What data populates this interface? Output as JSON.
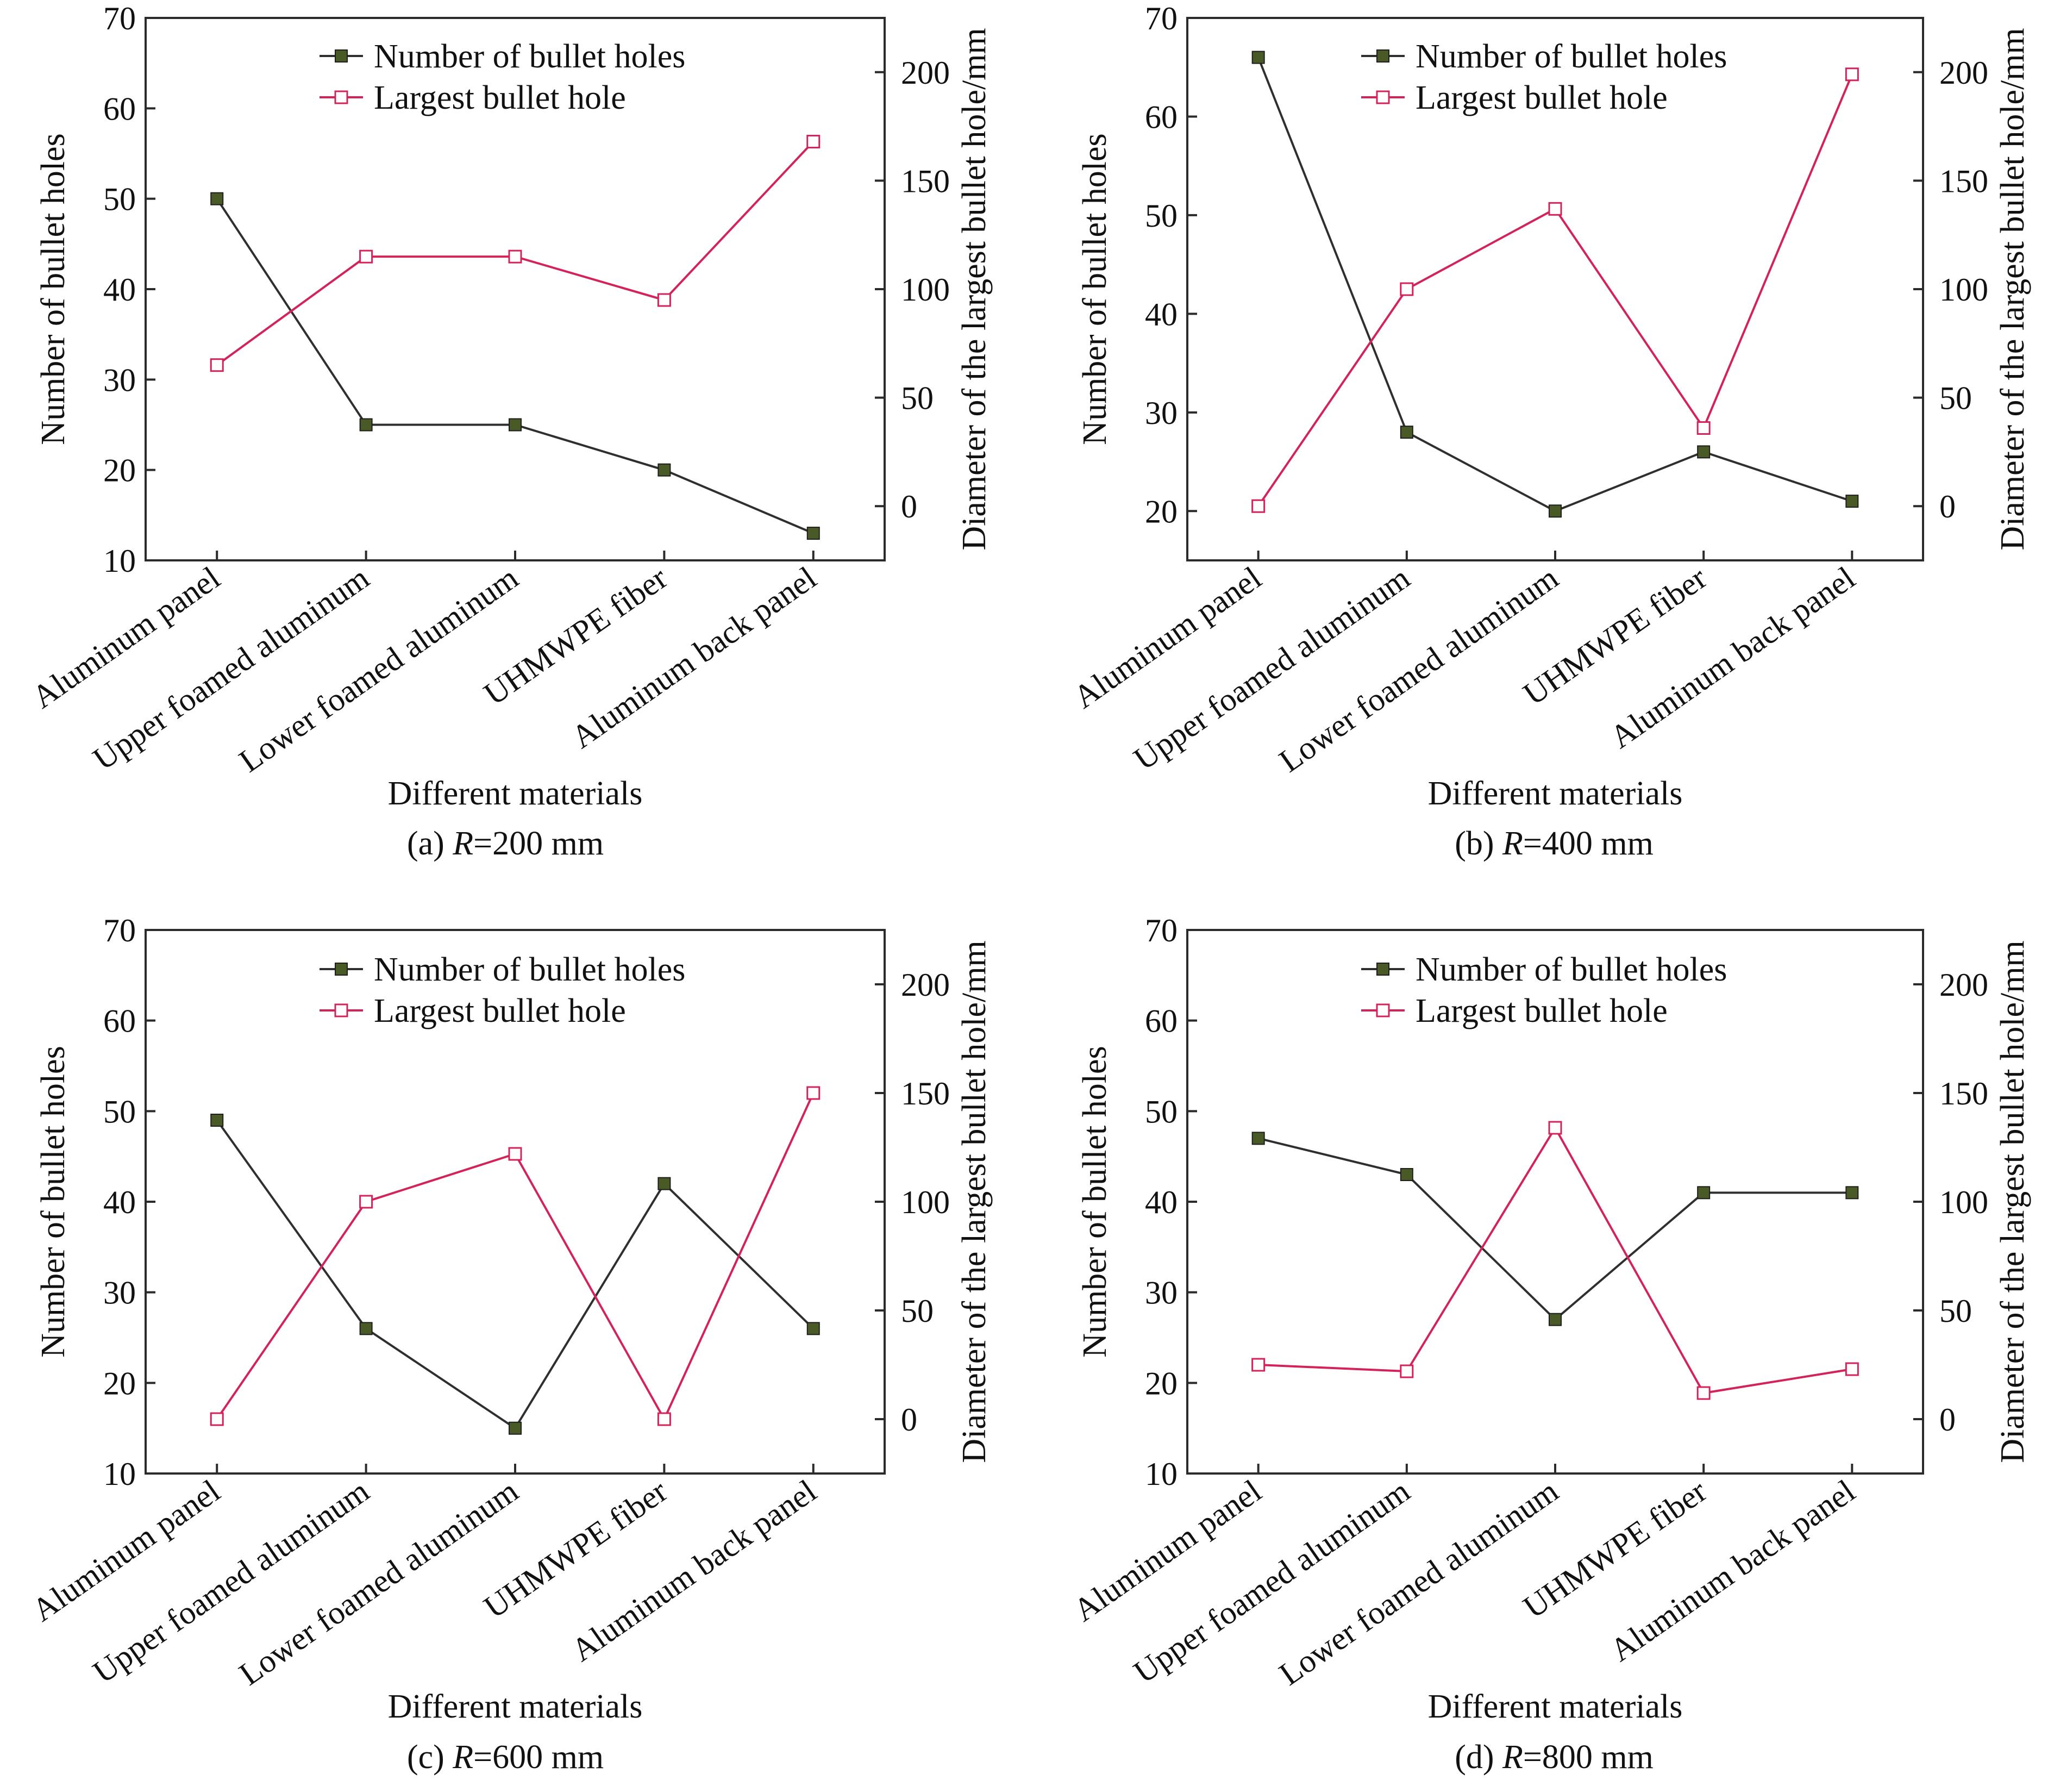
{
  "figure": {
    "panels": [
      {
        "caption_prefix": "(a) ",
        "caption_var": "R",
        "caption_suffix": "=200 mm",
        "xlabel": "Different materials",
        "ylabel_left": "Number of bullet holes",
        "ylabel_right": "Diameter of the largest bullet hole/mm"
      },
      {
        "caption_prefix": "(b) ",
        "caption_var": "R",
        "caption_suffix": "=400 mm",
        "xlabel": "Different materials",
        "ylabel_left": "Number of bullet holes",
        "ylabel_right": "Diameter of the largest bullet hole/mm"
      },
      {
        "caption_prefix": "(c) ",
        "caption_var": "R",
        "caption_suffix": "=600 mm",
        "xlabel": "Different materials",
        "ylabel_left": "Number of bullet holes",
        "ylabel_right": "Diameter of the largest bullet hole/mm"
      },
      {
        "caption_prefix": "(d) ",
        "caption_var": "R",
        "caption_suffix": "=800 mm",
        "xlabel": "Different materials",
        "ylabel_left": "Number of bullet holes",
        "ylabel_right": "Diameter of the largest bullet hole/mm"
      }
    ]
  },
  "colors": {
    "number_series": "#2f2f2f",
    "number_marker": "#4a5a26",
    "largest_series": "#d2245a",
    "largest_marker_fill": "#ffffff"
  },
  "chart_data": [
    {
      "type": "line",
      "categories": [
        "Aluminum panel",
        "Upper foamed aluminum",
        "Lower foamed aluminum",
        "UHMWPE fiber",
        "Aluminum back panel"
      ],
      "series": [
        {
          "name": "Number of bullet holes",
          "axis": "left",
          "values": [
            50,
            25,
            25,
            20,
            13
          ]
        },
        {
          "name": "Largest bullet hole",
          "axis": "right",
          "values": [
            65,
            115,
            115,
            95,
            168
          ]
        }
      ],
      "xlabel": "Different materials",
      "ylabel_left": "Number of bullet holes",
      "ylabel_right": "Diameter of the largest bullet hole/mm",
      "ylim_left": [
        10,
        70
      ],
      "yticks_left": [
        10,
        20,
        30,
        40,
        50,
        60,
        70
      ],
      "ylim_right": [
        -25,
        225
      ],
      "yticks_right": [
        0,
        50,
        100,
        150,
        200
      ],
      "legend_position": "top-center",
      "grid": false
    },
    {
      "type": "line",
      "categories": [
        "Aluminum panel",
        "Upper foamed aluminum",
        "Lower foamed aluminum",
        "UHMWPE fiber",
        "Aluminum back panel"
      ],
      "series": [
        {
          "name": "Number of bullet holes",
          "axis": "left",
          "values": [
            66,
            28,
            20,
            26,
            21
          ]
        },
        {
          "name": "Largest bullet hole",
          "axis": "right",
          "values": [
            0,
            100,
            137,
            36,
            199
          ]
        }
      ],
      "xlabel": "Different materials",
      "ylabel_left": "Number of bullet holes",
      "ylabel_right": "Diameter of the largest bullet hole/mm",
      "ylim_left": [
        15,
        70
      ],
      "yticks_left": [
        20,
        30,
        40,
        50,
        60,
        70
      ],
      "ylim_right": [
        -25,
        225
      ],
      "yticks_right": [
        0,
        50,
        100,
        150,
        200
      ],
      "legend_position": "top-center",
      "grid": false
    },
    {
      "type": "line",
      "categories": [
        "Aluminum panel",
        "Upper foamed aluminum",
        "Lower foamed aluminum",
        "UHMWPE fiber",
        "Aluminum back panel"
      ],
      "series": [
        {
          "name": "Number of bullet holes",
          "axis": "left",
          "values": [
            49,
            26,
            15,
            42,
            26
          ]
        },
        {
          "name": "Largest bullet hole",
          "axis": "right",
          "values": [
            0,
            100,
            122,
            0,
            150
          ]
        }
      ],
      "xlabel": "Different materials",
      "ylabel_left": "Number of bullet holes",
      "ylabel_right": "Diameter of the largest bullet hole/mm",
      "ylim_left": [
        10,
        70
      ],
      "yticks_left": [
        10,
        20,
        30,
        40,
        50,
        60,
        70
      ],
      "ylim_right": [
        -25,
        225
      ],
      "yticks_right": [
        0,
        50,
        100,
        150,
        200
      ],
      "legend_position": "top-center",
      "grid": false
    },
    {
      "type": "line",
      "categories": [
        "Aluminum panel",
        "Upper foamed aluminum",
        "Lower foamed aluminum",
        "UHMWPE fiber",
        "Aluminum back panel"
      ],
      "series": [
        {
          "name": "Number of bullet holes",
          "axis": "left",
          "values": [
            47,
            43,
            27,
            41,
            41
          ]
        },
        {
          "name": "Largest bullet hole",
          "axis": "right",
          "values": [
            25,
            22,
            134,
            12,
            23
          ]
        }
      ],
      "xlabel": "Different materials",
      "ylabel_left": "Number of bullet holes",
      "ylabel_right": "Diameter of the largest bullet hole/mm",
      "ylim_left": [
        10,
        70
      ],
      "yticks_left": [
        10,
        20,
        30,
        40,
        50,
        60,
        70
      ],
      "ylim_right": [
        -25,
        225
      ],
      "yticks_right": [
        0,
        50,
        100,
        150,
        200
      ],
      "legend_position": "top-center",
      "grid": false
    }
  ]
}
